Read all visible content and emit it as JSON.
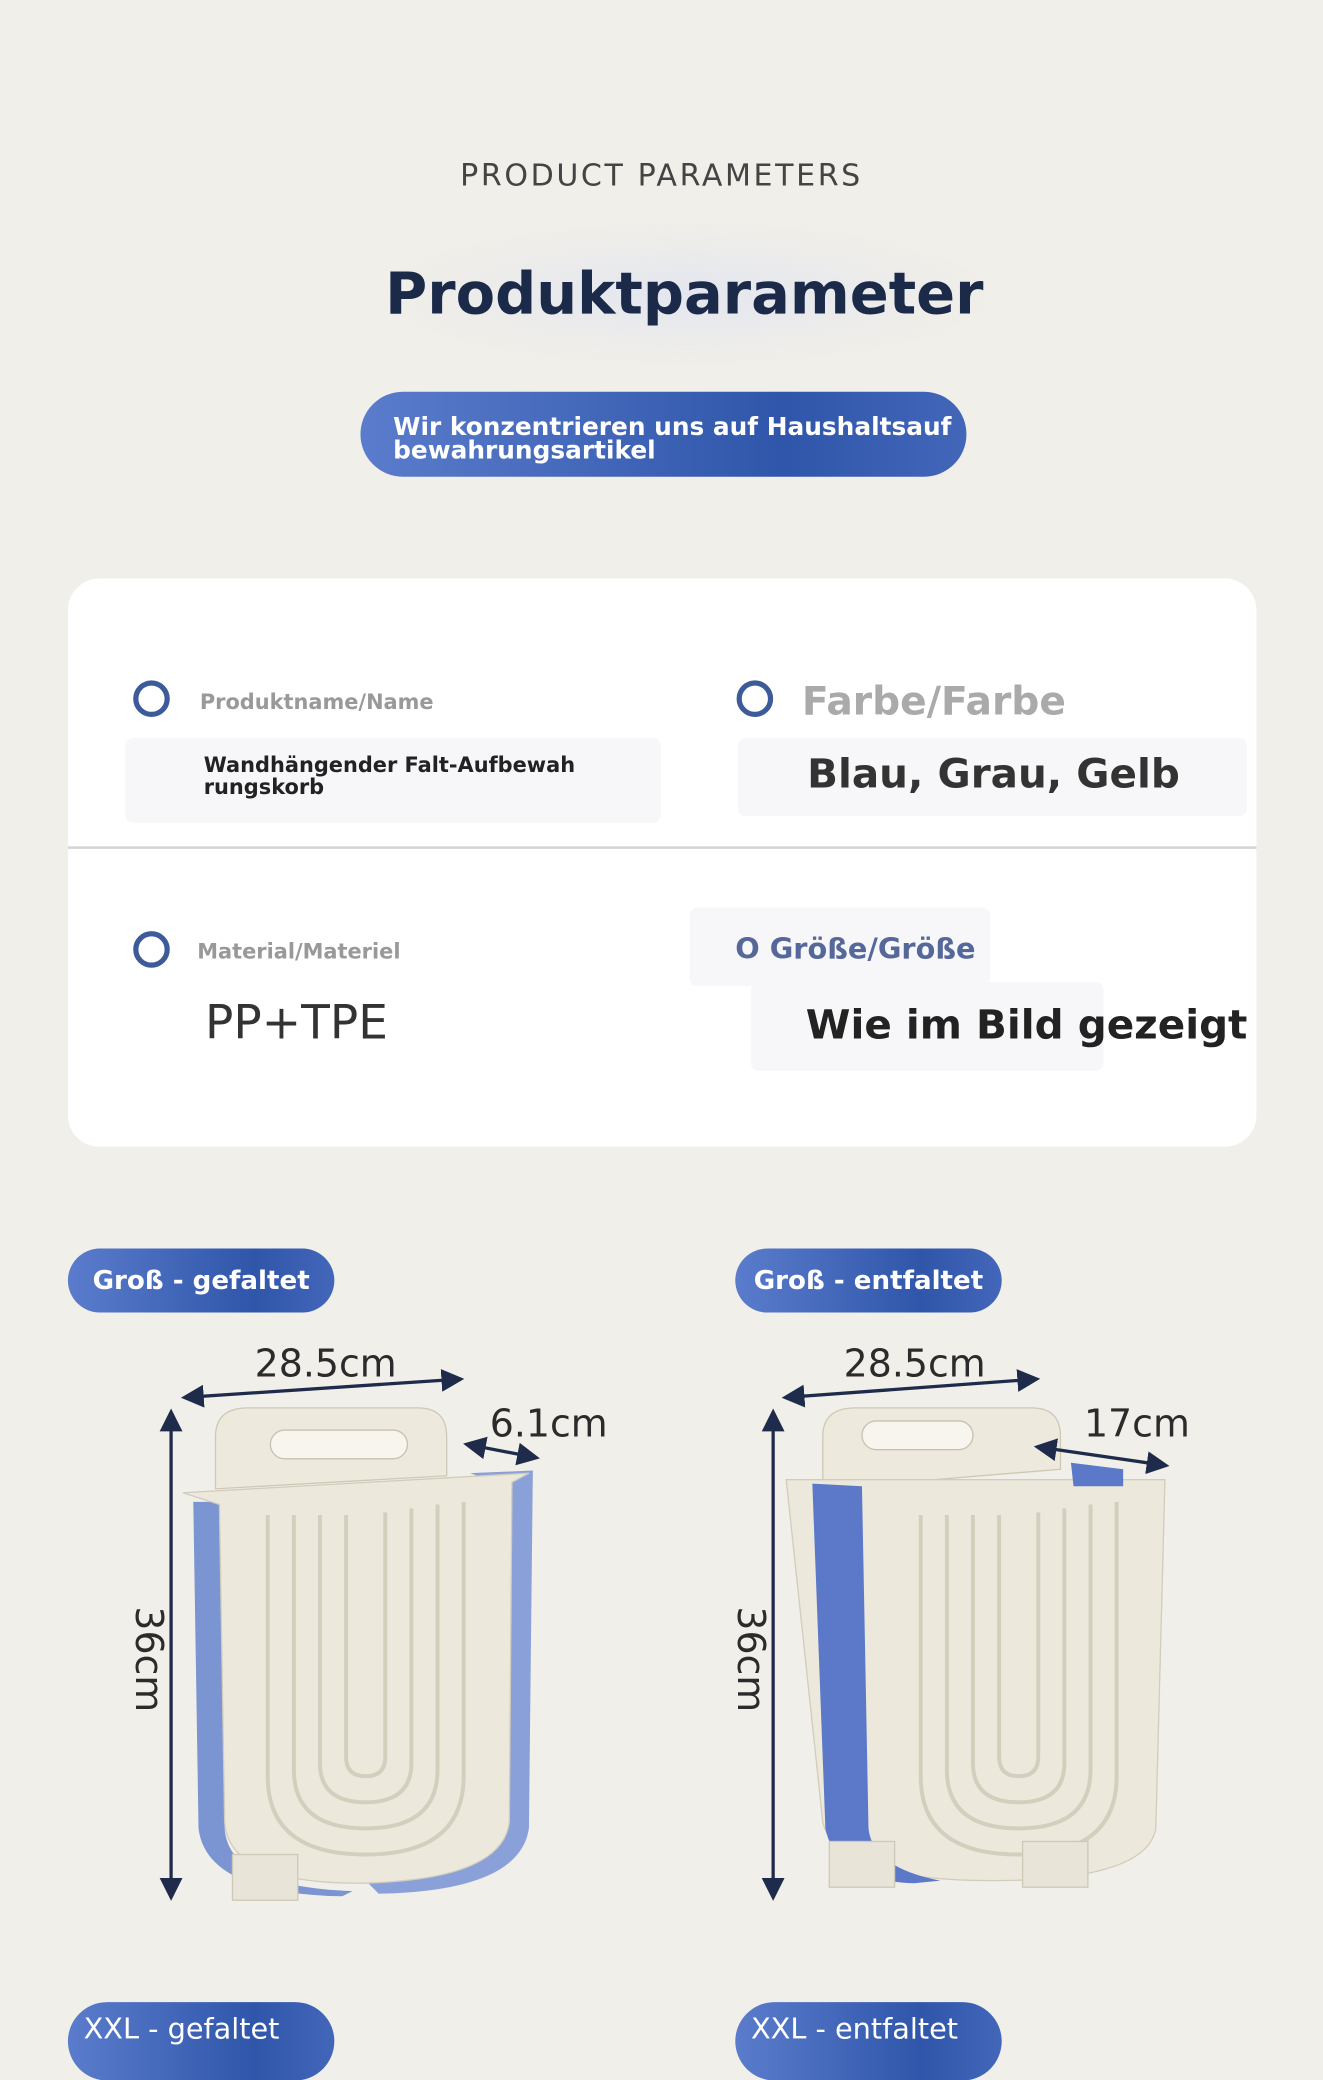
{
  "header": {
    "eyebrow": "PRODUCT PARAMETERS",
    "title": "Produktparameter",
    "tagline": [
      "Wir konzentrieren uns auf Haushaltsauf",
      "bewahrungsartikel"
    ]
  },
  "parameters": [
    {
      "label": "Produktname/Name",
      "value": [
        "Wandhängender Falt-Aufbewah",
        "rungskorb"
      ]
    },
    {
      "label": "Farbe/Farbe",
      "value": [
        "Blau, Grau, Gelb"
      ]
    },
    {
      "label": "Material/Materiel",
      "value": [
        "PP+TPE"
      ]
    },
    {
      "label": "O Größe/Größe",
      "value": [
        "Wie im Bild gezeigt"
      ]
    }
  ],
  "products": [
    {
      "label": "Groß - gefaltet",
      "width": "28.5cm",
      "depth": "6.1cm",
      "height": "36cm"
    },
    {
      "label": "Groß - entfaltet",
      "width": "28.5cm",
      "depth": "17cm",
      "height": "36cm"
    }
  ],
  "more": [
    "XXL - gefaltet",
    "XXL - entfaltet"
  ]
}
